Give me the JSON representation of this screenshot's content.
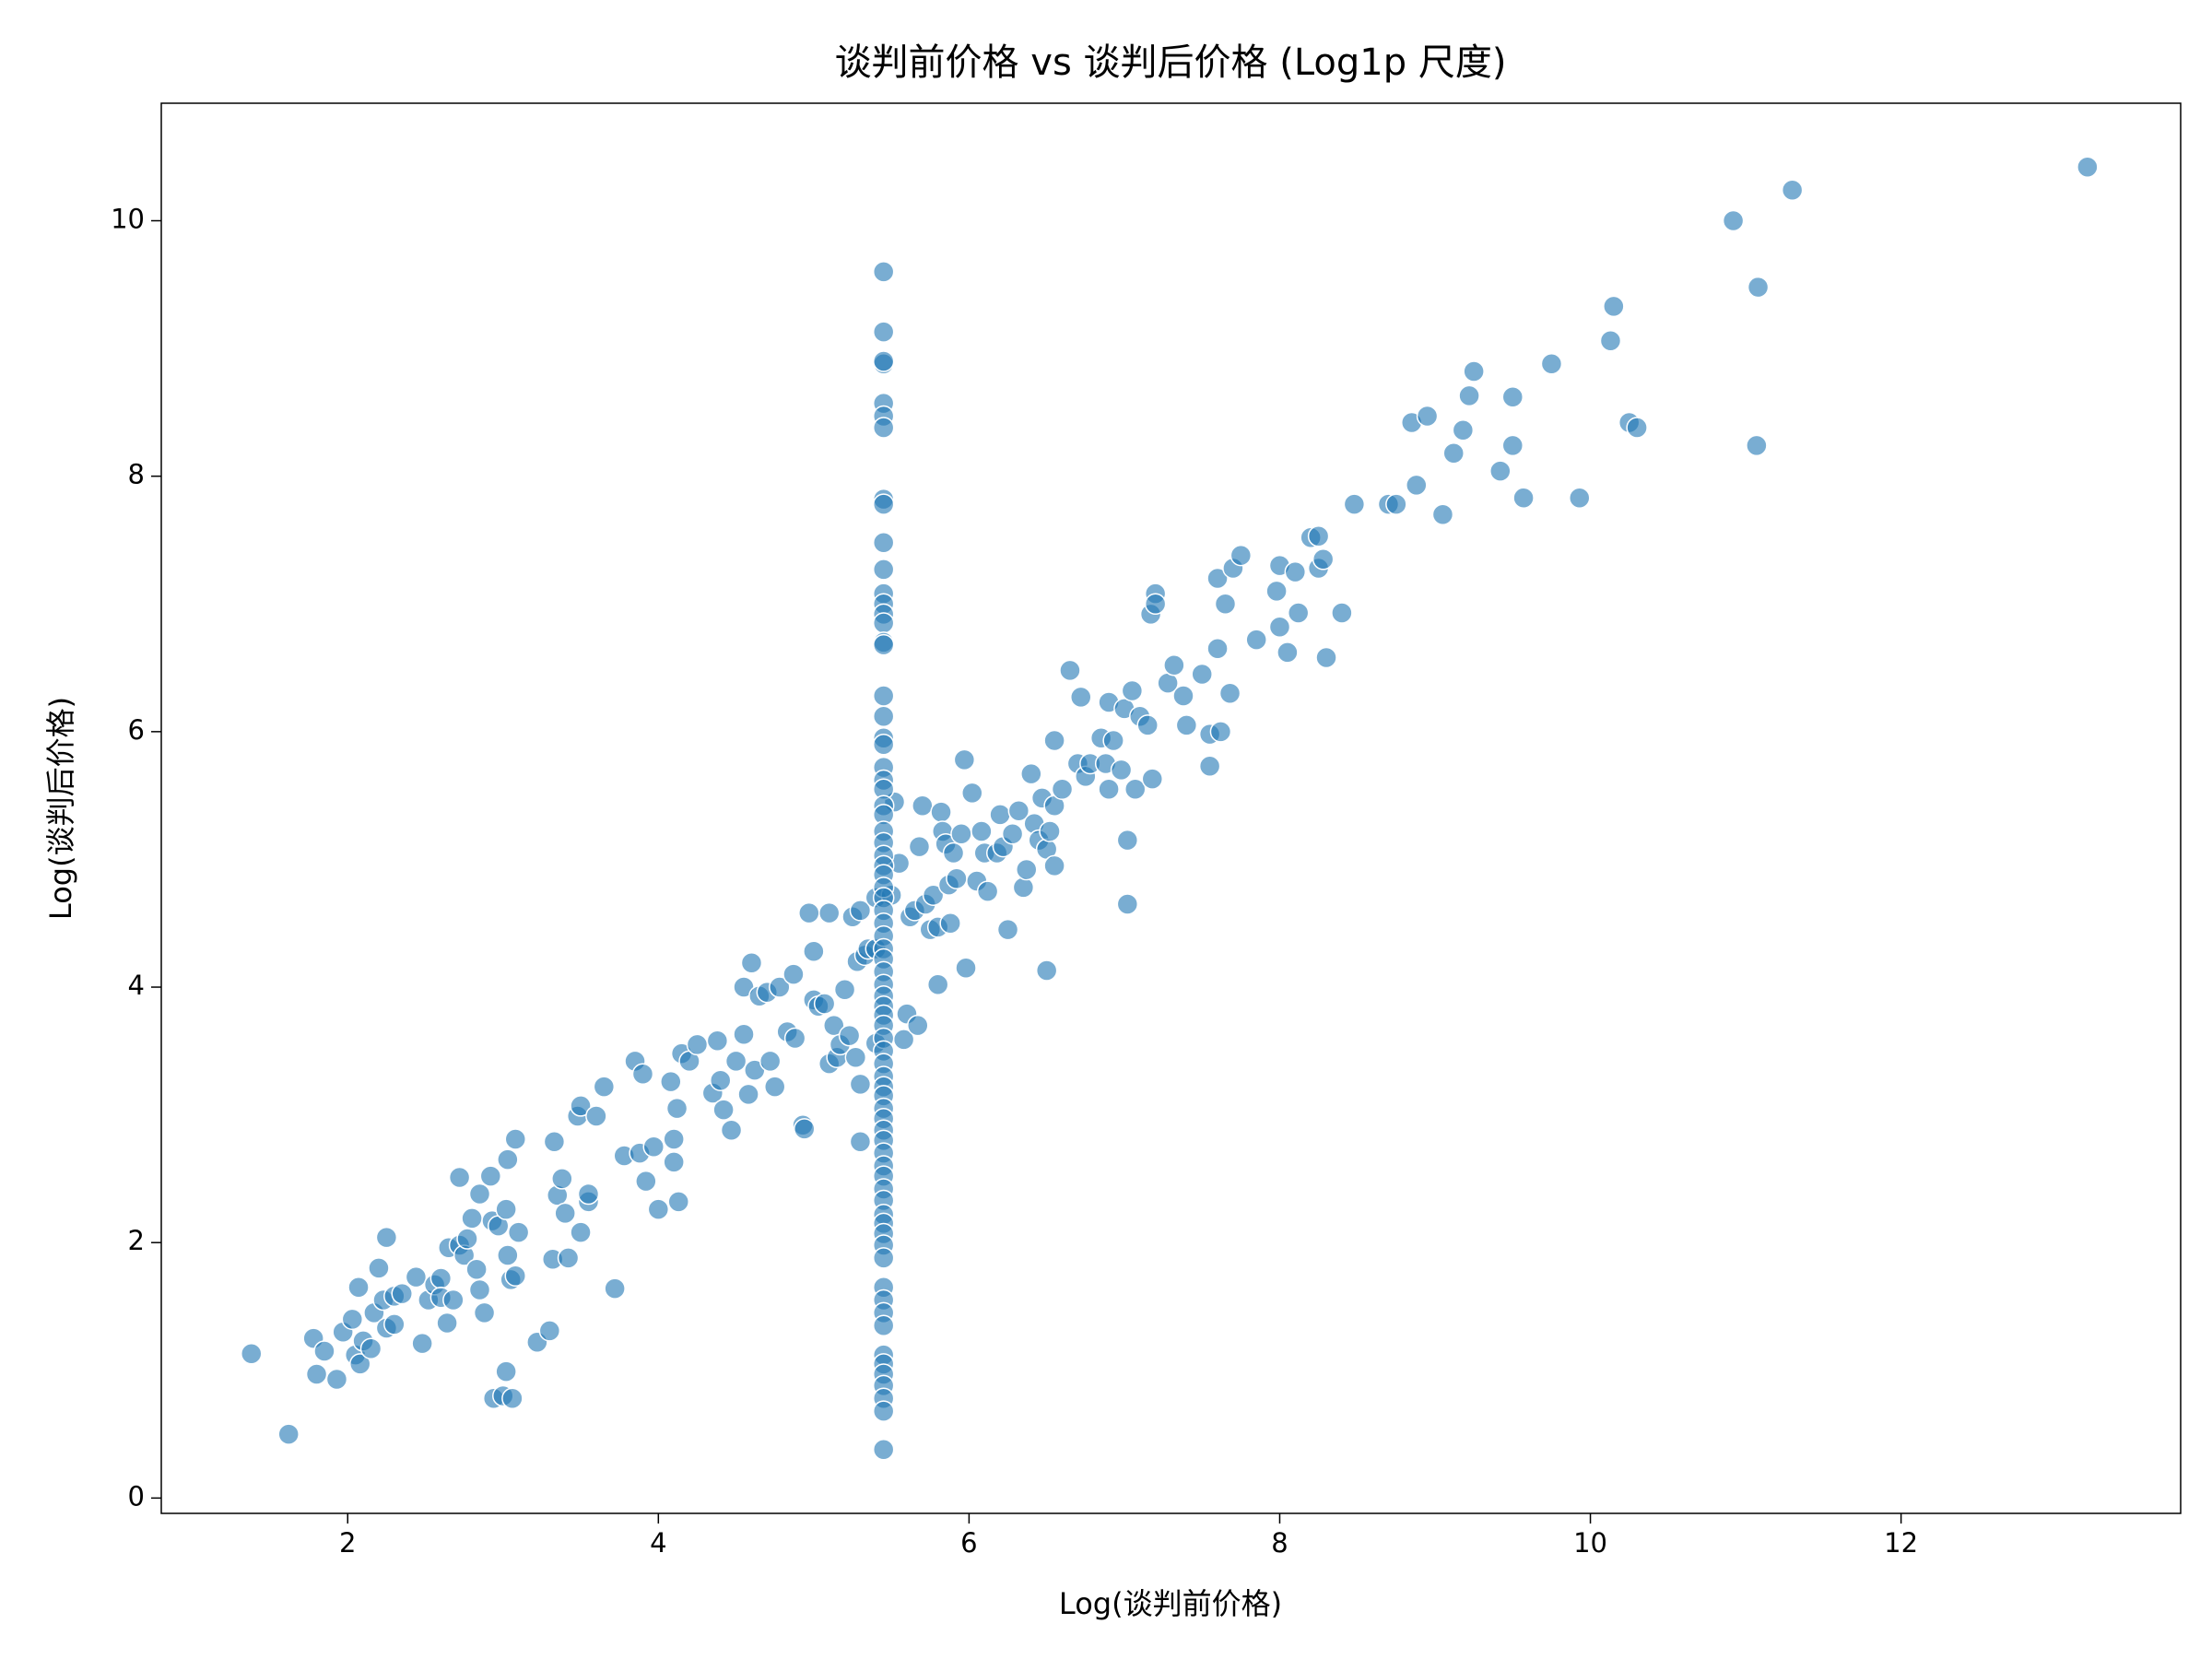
{
  "chart_data": {
    "type": "scatter",
    "title": "谈判前价格 vs 谈判后价格 (Log1p 尺度)",
    "xlabel": "Log(谈判前价格)",
    "ylabel": "Log(谈判后价格)",
    "color": "#1f77b4",
    "xlim": [
      0.8,
      13.8
    ],
    "ylim": [
      -0.12,
      10.92
    ],
    "xticks": [
      2,
      4,
      6,
      8,
      10,
      12
    ],
    "yticks": [
      0,
      2,
      4,
      6,
      8,
      10
    ],
    "grid": false,
    "x": [
      1.38,
      1.62,
      1.78,
      1.8,
      1.85,
      1.93,
      1.97,
      2.03,
      2.05,
      2.07,
      2.08,
      2.1,
      2.15,
      2.17,
      2.2,
      2.23,
      2.25,
      2.25,
      2.3,
      2.3,
      2.35,
      2.44,
      2.48,
      2.52,
      2.56,
      2.6,
      2.6,
      2.64,
      2.65,
      2.68,
      2.72,
      2.72,
      2.75,
      2.77,
      2.8,
      2.83,
      2.85,
      2.85,
      2.88,
      2.92,
      2.93,
      2.94,
      2.97,
      3.0,
      3.02,
      3.02,
      3.03,
      3.03,
      3.05,
      3.06,
      3.08,
      3.08,
      3.1,
      3.22,
      3.3,
      3.32,
      3.33,
      3.35,
      3.38,
      3.4,
      3.42,
      3.48,
      3.5,
      3.5,
      3.55,
      3.55,
      3.6,
      3.65,
      3.72,
      3.78,
      3.85,
      3.88,
      3.9,
      3.92,
      3.97,
      4.0,
      4.08,
      4.1,
      4.1,
      4.12,
      4.13,
      4.15,
      4.2,
      4.25,
      4.35,
      4.38,
      4.4,
      4.42,
      4.47,
      4.5,
      4.55,
      4.55,
      4.58,
      4.6,
      4.62,
      4.65,
      4.7,
      4.72,
      4.75,
      4.78,
      4.83,
      4.87,
      4.88,
      4.93,
      4.94,
      4.97,
      5.0,
      5.0,
      5.03,
      5.07,
      5.1,
      5.1,
      5.13,
      5.15,
      5.17,
      5.2,
      5.23,
      5.25,
      5.27,
      5.28,
      5.3,
      5.3,
      5.3,
      5.33,
      5.35,
      5.4,
      5.4,
      5.4,
      5.5,
      5.52,
      5.55,
      5.58,
      5.6,
      5.62,
      5.65,
      5.67,
      5.68,
      5.7,
      5.72,
      5.75,
      5.77,
      5.8,
      5.8,
      5.82,
      5.83,
      5.85,
      5.87,
      5.88,
      5.9,
      5.92,
      5.95,
      5.97,
      5.98,
      6.02,
      6.05,
      6.08,
      6.1,
      6.12,
      6.18,
      6.2,
      6.22,
      6.25,
      6.28,
      6.32,
      6.35,
      6.37,
      6.4,
      6.42,
      6.45,
      6.47,
      6.5,
      6.5,
      6.52,
      6.55,
      6.55,
      6.55,
      6.6,
      6.65,
      6.7,
      6.72,
      6.75,
      6.78,
      6.85,
      6.88,
      6.9,
      6.9,
      6.93,
      6.98,
      7.0,
      7.02,
      7.02,
      7.05,
      7.07,
      7.1,
      7.15,
      7.17,
      7.18,
      7.2,
      7.2,
      7.28,
      7.32,
      7.38,
      7.4,
      7.5,
      7.55,
      7.55,
      7.6,
      7.6,
      7.62,
      7.65,
      7.68,
      7.7,
      7.75,
      7.85,
      7.98,
      8.0,
      8.0,
      8.05,
      8.1,
      8.12,
      8.2,
      8.25,
      8.25,
      8.3,
      8.28,
      8.4,
      8.48,
      8.7,
      8.75,
      8.85,
      8.88,
      8.95,
      9.05,
      9.12,
      9.18,
      9.22,
      9.25,
      9.42,
      9.5,
      9.5,
      9.57,
      9.75,
      9.93,
      10.13,
      10.15,
      10.25,
      10.3,
      10.92,
      11.07,
      11.08,
      11.3,
      13.2,
      5.45,
      5.45,
      5.45,
      5.45,
      5.45,
      5.45,
      5.45,
      5.45,
      5.45,
      5.45,
      5.45,
      5.45,
      5.45,
      5.45,
      5.45,
      5.45,
      5.45,
      5.45,
      5.45,
      5.45,
      5.45,
      5.45,
      5.45,
      5.45,
      5.45,
      5.45,
      5.45,
      5.45,
      5.45,
      5.45,
      5.45,
      5.45,
      5.45,
      5.45,
      5.45,
      5.45,
      5.45,
      5.45,
      5.45,
      5.45,
      5.45,
      5.45,
      5.45,
      5.45,
      5.45,
      5.45,
      5.45,
      5.45,
      5.45,
      5.45,
      5.45,
      5.45,
      5.45,
      5.45,
      5.45,
      5.45,
      5.45,
      5.45,
      5.45,
      5.45,
      5.45,
      5.45,
      5.45,
      5.45,
      5.45,
      5.45,
      5.45,
      5.45,
      5.45,
      5.45,
      5.45,
      5.45,
      5.45,
      5.45,
      5.45
    ],
    "y": [
      1.13,
      0.5,
      1.25,
      0.97,
      1.15,
      0.93,
      1.3,
      1.4,
      1.12,
      1.65,
      1.05,
      1.23,
      1.17,
      1.45,
      1.8,
      1.55,
      2.04,
      1.33,
      1.58,
      1.36,
      1.6,
      1.73,
      1.21,
      1.55,
      1.67,
      1.72,
      1.57,
      1.37,
      1.96,
      1.55,
      2.51,
      1.98,
      1.9,
      2.03,
      2.19,
      1.79,
      2.38,
      1.63,
      1.45,
      2.52,
      2.17,
      0.78,
      2.13,
      0.8,
      2.26,
      0.99,
      2.65,
      1.9,
      1.71,
      0.78,
      2.81,
      1.74,
      2.08,
      1.22,
      1.31,
      1.87,
      2.79,
      2.37,
      2.5,
      2.23,
      1.88,
      2.99,
      3.07,
      2.08,
      2.32,
      2.38,
      2.99,
      3.22,
      1.64,
      2.68,
      3.42,
      2.7,
      3.32,
      2.48,
      2.75,
      2.26,
      3.26,
      2.81,
      2.63,
      3.05,
      2.32,
      3.48,
      3.42,
      3.55,
      3.17,
      3.58,
      3.27,
      3.04,
      2.88,
      3.42,
      3.63,
      4.0,
      3.16,
      4.19,
      3.35,
      3.93,
      3.96,
      3.42,
      3.22,
      4.0,
      3.65,
      4.1,
      3.6,
      2.92,
      2.89,
      4.58,
      4.28,
      3.9,
      3.85,
      3.87,
      4.58,
      3.4,
      3.7,
      3.45,
      3.55,
      3.98,
      3.62,
      4.55,
      3.45,
      4.2,
      4.6,
      3.24,
      2.79,
      4.25,
      4.3,
      4.7,
      3.56,
      4.3,
      4.72,
      5.45,
      4.97,
      3.59,
      3.79,
      4.55,
      4.6,
      3.7,
      5.1,
      5.42,
      4.65,
      4.45,
      4.72,
      4.02,
      4.47,
      5.37,
      5.22,
      5.12,
      4.8,
      4.5,
      5.05,
      4.85,
      5.2,
      5.78,
      4.15,
      5.52,
      4.83,
      5.22,
      5.05,
      4.75,
      5.05,
      5.35,
      5.1,
      4.45,
      5.2,
      5.38,
      4.78,
      4.92,
      5.67,
      5.28,
      5.15,
      5.48,
      5.08,
      4.13,
      5.22,
      5.42,
      4.95,
      5.93,
      5.55,
      6.48,
      5.75,
      6.27,
      5.65,
      5.75,
      5.95,
      5.75,
      6.23,
      5.55,
      5.93,
      5.7,
      6.18,
      5.15,
      4.65,
      6.32,
      5.55,
      6.12,
      6.05,
      6.92,
      5.63,
      7.08,
      7.0,
      6.38,
      6.52,
      6.28,
      6.05,
      6.45,
      5.98,
      5.73,
      7.2,
      6.65,
      6.0,
      7.0,
      6.3,
      7.28,
      7.38,
      6.72,
      7.1,
      7.3,
      6.82,
      6.62,
      7.25,
      6.93,
      7.52,
      7.53,
      7.28,
      6.58,
      7.35,
      6.93,
      7.78,
      7.78,
      7.78,
      8.42,
      7.93,
      8.47,
      7.7,
      8.18,
      8.36,
      8.63,
      8.82,
      8.04,
      8.62,
      8.24,
      7.83,
      8.88,
      7.83,
      9.06,
      9.33,
      8.42,
      8.38,
      10.0,
      8.24,
      9.48,
      10.24,
      10.42,
      9.6,
      9.13,
      8.88,
      8.9,
      8.57,
      8.47,
      8.38,
      7.82,
      7.78,
      7.48,
      7.27,
      7.08,
      7.0,
      6.92,
      6.85,
      6.7,
      6.68,
      6.28,
      6.12,
      5.95,
      5.9,
      5.72,
      5.62,
      5.55,
      5.42,
      5.35,
      5.22,
      5.13,
      5.03,
      4.95,
      4.88,
      4.78,
      4.7,
      4.6,
      4.5,
      4.4,
      4.3,
      4.22,
      4.12,
      4.02,
      3.93,
      3.85,
      3.78,
      3.7,
      3.6,
      3.5,
      3.4,
      3.3,
      3.22,
      3.15,
      3.05,
      2.97,
      2.88,
      2.8,
      2.7,
      2.6,
      2.52,
      2.42,
      2.33,
      2.22,
      2.15,
      2.07,
      1.98,
      1.88,
      1.65,
      1.55,
      1.45,
      1.35,
      1.12,
      1.05,
      0.97,
      0.88,
      0.78,
      0.68,
      0.38
    ]
  }
}
